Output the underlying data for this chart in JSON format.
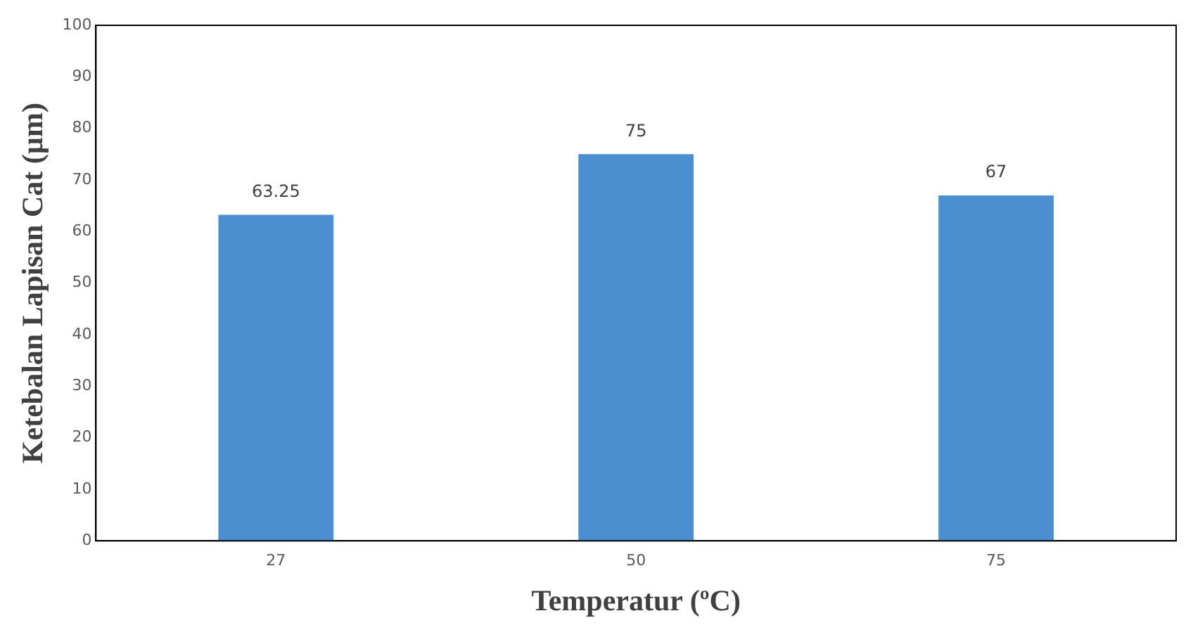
{
  "chart_data": {
    "type": "bar",
    "xlabel": "Temperatur (ºC)",
    "ylabel": "Ketebalan Lapisan Cat (µm)",
    "categories": [
      "27",
      "50",
      "75"
    ],
    "values": [
      63.25,
      75,
      67
    ],
    "color": "#4a8fd0",
    "ylim": [
      0,
      100
    ],
    "yticks": [
      0,
      10,
      20,
      30,
      40,
      50,
      60,
      70,
      80,
      90,
      100
    ],
    "grid": false,
    "legend": false,
    "data_labels": true
  }
}
